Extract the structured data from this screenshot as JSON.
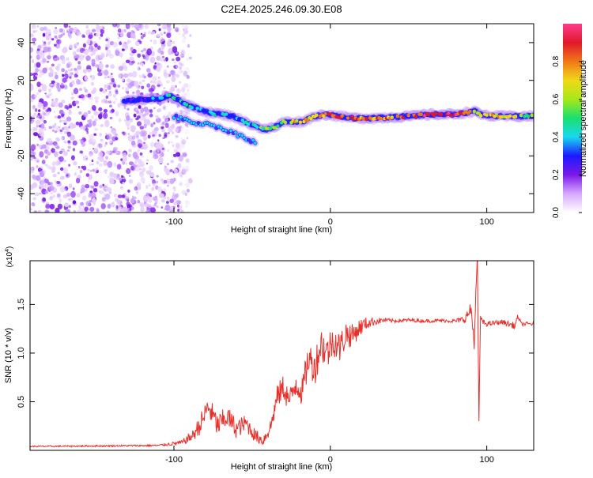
{
  "title": "C2E4.2025.246.09.30.E08",
  "colors": {
    "signal": "#e8302a",
    "speckle": "#7a18e8",
    "track": "#18e0c8",
    "peak": "#e0182a"
  },
  "chart_data": [
    {
      "type": "heatmap",
      "title": "C2E4.2025.246.09.30.E08",
      "xlabel": "Height of straight line (km)",
      "ylabel": "Frequency (Hz)",
      "xlim": [
        -192,
        130
      ],
      "ylim": [
        -50,
        50
      ],
      "xticks": [
        -100,
        0,
        100
      ],
      "yticks": [
        -40,
        -20,
        0,
        20,
        40
      ],
      "colorbar": {
        "label": "Normalized spectral amplitude",
        "range": [
          0,
          1
        ],
        "ticks": [
          "0.0",
          "0.2",
          "0.4",
          "0.6",
          "0.8"
        ],
        "tick_values": [
          0,
          0.2,
          0.4,
          0.6,
          0.8
        ],
        "stops": [
          "#ffffff",
          "#d7a9ff",
          "#7a18e8",
          "#1a1aff",
          "#18d8f0",
          "#18e070",
          "#a8e818",
          "#f0d818",
          "#f07818",
          "#e0182a",
          "#ff3c8c"
        ]
      },
      "noise_region_x": [
        -192,
        -97
      ],
      "track": [
        {
          "x": -132,
          "y": 9,
          "a": 0.3
        },
        {
          "x": -118,
          "y": 10,
          "a": 0.3
        },
        {
          "x": -110,
          "y": 10,
          "a": 0.35
        },
        {
          "x": -103,
          "y": 12,
          "a": 0.4
        },
        {
          "x": -98,
          "y": 10,
          "a": 0.4
        },
        {
          "x": -92,
          "y": 7,
          "a": 0.4
        },
        {
          "x": -85,
          "y": 5,
          "a": 0.4
        },
        {
          "x": -78,
          "y": 3,
          "a": 0.4
        },
        {
          "x": -70,
          "y": 2,
          "a": 0.4
        },
        {
          "x": -62,
          "y": 1,
          "a": 0.4
        },
        {
          "x": -55,
          "y": -2,
          "a": 0.4
        },
        {
          "x": -48,
          "y": -4,
          "a": 0.45
        },
        {
          "x": -42,
          "y": -6,
          "a": 0.5
        },
        {
          "x": -36,
          "y": -5,
          "a": 0.55
        },
        {
          "x": -30,
          "y": -2,
          "a": 0.6
        },
        {
          "x": -25,
          "y": -2,
          "a": 0.65
        },
        {
          "x": -18,
          "y": -2,
          "a": 0.7
        },
        {
          "x": -10,
          "y": 1,
          "a": 0.75
        },
        {
          "x": -2,
          "y": 2,
          "a": 0.8
        },
        {
          "x": 5,
          "y": 1,
          "a": 0.85
        },
        {
          "x": 15,
          "y": 0,
          "a": 0.85
        },
        {
          "x": 30,
          "y": 0,
          "a": 0.8
        },
        {
          "x": 50,
          "y": 1,
          "a": 0.85
        },
        {
          "x": 65,
          "y": 2,
          "a": 0.9
        },
        {
          "x": 78,
          "y": 2,
          "a": 0.9
        },
        {
          "x": 88,
          "y": 3,
          "a": 0.8
        },
        {
          "x": 92,
          "y": 4,
          "a": 0.6
        },
        {
          "x": 95,
          "y": 2,
          "a": 0.7
        },
        {
          "x": 105,
          "y": 1,
          "a": 0.7
        },
        {
          "x": 115,
          "y": 1,
          "a": 0.65
        },
        {
          "x": 130,
          "y": 1,
          "a": 0.6
        }
      ],
      "branch": [
        {
          "x": -100,
          "y": 1
        },
        {
          "x": -90,
          "y": -2
        },
        {
          "x": -80,
          "y": -3
        },
        {
          "x": -70,
          "y": -5
        },
        {
          "x": -62,
          "y": -8
        },
        {
          "x": -55,
          "y": -10
        },
        {
          "x": -48,
          "y": -13
        }
      ]
    },
    {
      "type": "line",
      "xlabel": "Height of straight line (km)",
      "ylabel": "SNR (10 * v/v)",
      "yscale_label": "(x10",
      "yscale_exp": "4",
      "xlim": [
        -192,
        130
      ],
      "ylim": [
        0,
        19500
      ],
      "xticks": [
        -100,
        0,
        100
      ],
      "yticks": [
        5000,
        10000,
        15000
      ],
      "ytick_labels": [
        "0.5",
        "1.0",
        "1.5"
      ],
      "series": [
        {
          "name": "SNR",
          "x": [
            -192,
            -150,
            -110,
            -95,
            -88,
            -82,
            -78,
            -72,
            -66,
            -60,
            -54,
            -48,
            -43,
            -38,
            -34,
            -30,
            -26,
            -22,
            -18,
            -14,
            -10,
            -6,
            -2,
            2,
            6,
            10,
            14,
            18,
            22,
            26,
            30,
            35,
            40,
            50,
            60,
            70,
            80,
            86,
            90,
            92,
            93,
            94,
            95,
            96,
            97,
            100,
            110,
            118,
            120,
            122,
            130
          ],
          "y": [
            400,
            450,
            500,
            800,
            1500,
            3000,
            4500,
            2500,
            3500,
            2200,
            2800,
            1500,
            1000,
            2500,
            5500,
            6500,
            5000,
            7000,
            6000,
            9500,
            8500,
            11000,
            10000,
            11500,
            10500,
            12000,
            11800,
            12500,
            13000,
            13200,
            13300,
            13400,
            13300,
            13400,
            13300,
            13350,
            13300,
            13500,
            14500,
            11000,
            16000,
            19500,
            3000,
            14000,
            13200,
            13000,
            13200,
            12800,
            13800,
            13000,
            13000
          ],
          "noise": [
            80,
            80,
            100,
            250,
            600,
            1200,
            1300,
            1200,
            1200,
            1000,
            900,
            700,
            600,
            900,
            1200,
            1400,
            1300,
            1600,
            1500,
            1800,
            1800,
            2000,
            1800,
            1800,
            1600,
            1500,
            1200,
            1000,
            700,
            500,
            350,
            250,
            200,
            180,
            180,
            180,
            200,
            400,
            800,
            600,
            600,
            800,
            0,
            600,
            300,
            250,
            250,
            350,
            300,
            200,
            200
          ]
        }
      ]
    }
  ]
}
